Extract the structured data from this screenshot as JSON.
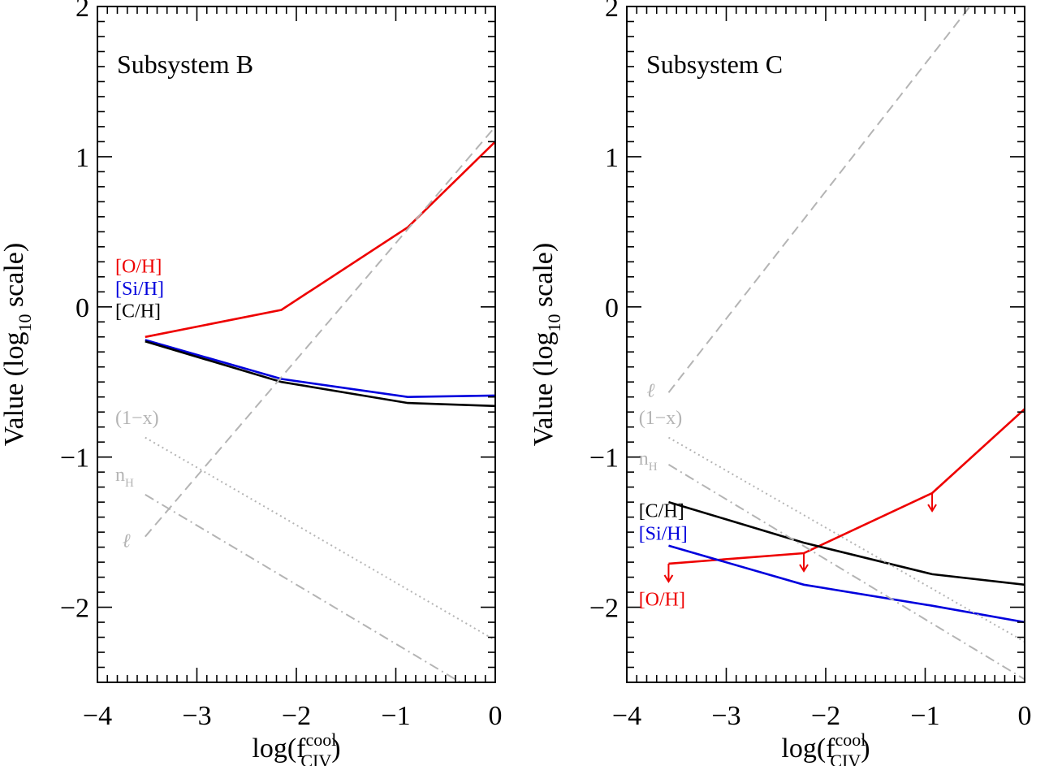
{
  "colors": {
    "red": "#ee0000",
    "blue": "#0000dd",
    "black": "#000000",
    "gray": "#b4b4b4"
  },
  "chart_data": [
    {
      "type": "line",
      "title": "Subsystem B",
      "xlabel": "log(f",
      "xlabel_sup": "cool",
      "xlabel_sub": "CIV",
      "xlabel_close": ")",
      "ylabel": "Value (log",
      "ylabel_sub": "10",
      "ylabel_close": " scale)",
      "xlim": [
        -4,
        0
      ],
      "ylim": [
        -2.5,
        2
      ],
      "xticks": [
        -4,
        -3,
        -2,
        -1,
        0
      ],
      "xtick_labels": [
        "−4",
        "−3",
        "−2",
        "−1",
        "0"
      ],
      "yticks": [
        -2,
        -1,
        0,
        1,
        2
      ],
      "ytick_labels": [
        "−2",
        "−1",
        "0",
        "1",
        "2"
      ],
      "series": [
        {
          "name": "[O/H]",
          "color": "red",
          "style": "solid",
          "points": [
            [
              -3.52,
              -0.2
            ],
            [
              -2.15,
              -0.02
            ],
            [
              -0.88,
              0.53
            ],
            [
              0,
              1.1
            ]
          ]
        },
        {
          "name": "[Si/H]",
          "color": "blue",
          "style": "solid",
          "points": [
            [
              -3.52,
              -0.22
            ],
            [
              -2.15,
              -0.48
            ],
            [
              -0.88,
              -0.6
            ],
            [
              0,
              -0.59
            ]
          ]
        },
        {
          "name": "[C/H]",
          "color": "black",
          "style": "solid",
          "points": [
            [
              -3.52,
              -0.23
            ],
            [
              -2.15,
              -0.5
            ],
            [
              -0.88,
              -0.64
            ],
            [
              0,
              -0.66
            ]
          ]
        },
        {
          "name": "(1−x)",
          "color": "gray",
          "style": "dotted",
          "points": [
            [
              -3.52,
              -0.87
            ],
            [
              0,
              -2.22
            ]
          ]
        },
        {
          "name": "n",
          "name_sub": "H",
          "color": "gray",
          "style": "dashdot",
          "points": [
            [
              -3.52,
              -1.25
            ],
            [
              -0.35,
              -2.5
            ]
          ]
        },
        {
          "name": "ℓ",
          "color": "gray",
          "style": "dashed",
          "points": [
            [
              -3.52,
              -1.53
            ],
            [
              0,
              1.2
            ]
          ]
        }
      ],
      "labels": [
        {
          "text": "[O/H]",
          "color": "red",
          "x": -3.82,
          "y": 0.23
        },
        {
          "text": "[Si/H]",
          "color": "blue",
          "x": -3.82,
          "y": 0.08
        },
        {
          "text": "[C/H]",
          "color": "black",
          "x": -3.82,
          "y": -0.07
        },
        {
          "text": "(1−x)",
          "color": "gray",
          "x": -3.82,
          "y": -0.78
        },
        {
          "text": "n",
          "sub": "H",
          "color": "gray",
          "x": -3.82,
          "y": -1.16
        },
        {
          "text": "ℓ",
          "color": "gray",
          "x": -3.75,
          "y": -1.6,
          "italic": true
        }
      ],
      "upper_limits": []
    },
    {
      "type": "line",
      "title": "Subsystem C",
      "xlabel": "log(f",
      "xlabel_sup": "cool",
      "xlabel_sub": "CIV",
      "xlabel_close": ")",
      "ylabel": "Value (log",
      "ylabel_sub": "10",
      "ylabel_close": " scale)",
      "xlim": [
        -4,
        0
      ],
      "ylim": [
        -2.5,
        2
      ],
      "xticks": [
        -4,
        -3,
        -2,
        -1,
        0
      ],
      "xtick_labels": [
        "−4",
        "−3",
        "−2",
        "−1",
        "0"
      ],
      "yticks": [
        -2,
        -1,
        0,
        1,
        2
      ],
      "ytick_labels": [
        "−2",
        "−1",
        "0",
        "1",
        "2"
      ],
      "series": [
        {
          "name": "[O/H]",
          "color": "red",
          "style": "solid",
          "points": [
            [
              -3.58,
              -1.71
            ],
            [
              -2.22,
              -1.64
            ],
            [
              -0.93,
              -1.24
            ],
            [
              0,
              -0.68
            ]
          ]
        },
        {
          "name": "[C/H]",
          "color": "black",
          "style": "solid",
          "points": [
            [
              -3.58,
              -1.3
            ],
            [
              -2.22,
              -1.57
            ],
            [
              -0.93,
              -1.78
            ],
            [
              0,
              -1.85
            ]
          ]
        },
        {
          "name": "[Si/H]",
          "color": "blue",
          "style": "solid",
          "points": [
            [
              -3.58,
              -1.59
            ],
            [
              -2.22,
              -1.85
            ],
            [
              -0.93,
              -1.99
            ],
            [
              0,
              -2.1
            ]
          ]
        },
        {
          "name": "(1−x)",
          "color": "gray",
          "style": "dotted",
          "points": [
            [
              -3.58,
              -0.87
            ],
            [
              0,
              -2.23
            ]
          ]
        },
        {
          "name": "n",
          "name_sub": "H",
          "color": "gray",
          "style": "dashdot",
          "points": [
            [
              -3.58,
              -1.05
            ],
            [
              0,
              -2.48
            ]
          ]
        },
        {
          "name": "ℓ",
          "color": "gray",
          "style": "dashed",
          "points": [
            [
              -3.58,
              -0.57
            ],
            [
              -0.55,
              2
            ]
          ]
        }
      ],
      "labels": [
        {
          "text": "(1−x)",
          "color": "gray",
          "x": -3.88,
          "y": -0.78
        },
        {
          "text": "n",
          "sub": "H",
          "color": "gray",
          "x": -3.88,
          "y": -1.05
        },
        {
          "text": "ℓ",
          "color": "gray",
          "x": -3.8,
          "y": -0.6,
          "italic": true
        },
        {
          "text": "[C/H]",
          "color": "black",
          "x": -3.88,
          "y": -1.4
        },
        {
          "text": "[Si/H]",
          "color": "blue",
          "x": -3.88,
          "y": -1.55
        },
        {
          "text": "[O/H]",
          "color": "red",
          "x": -3.88,
          "y": -1.99
        }
      ],
      "upper_limits": [
        [
          -3.58,
          -1.71
        ],
        [
          -2.22,
          -1.64
        ],
        [
          -0.93,
          -1.24
        ]
      ]
    }
  ]
}
